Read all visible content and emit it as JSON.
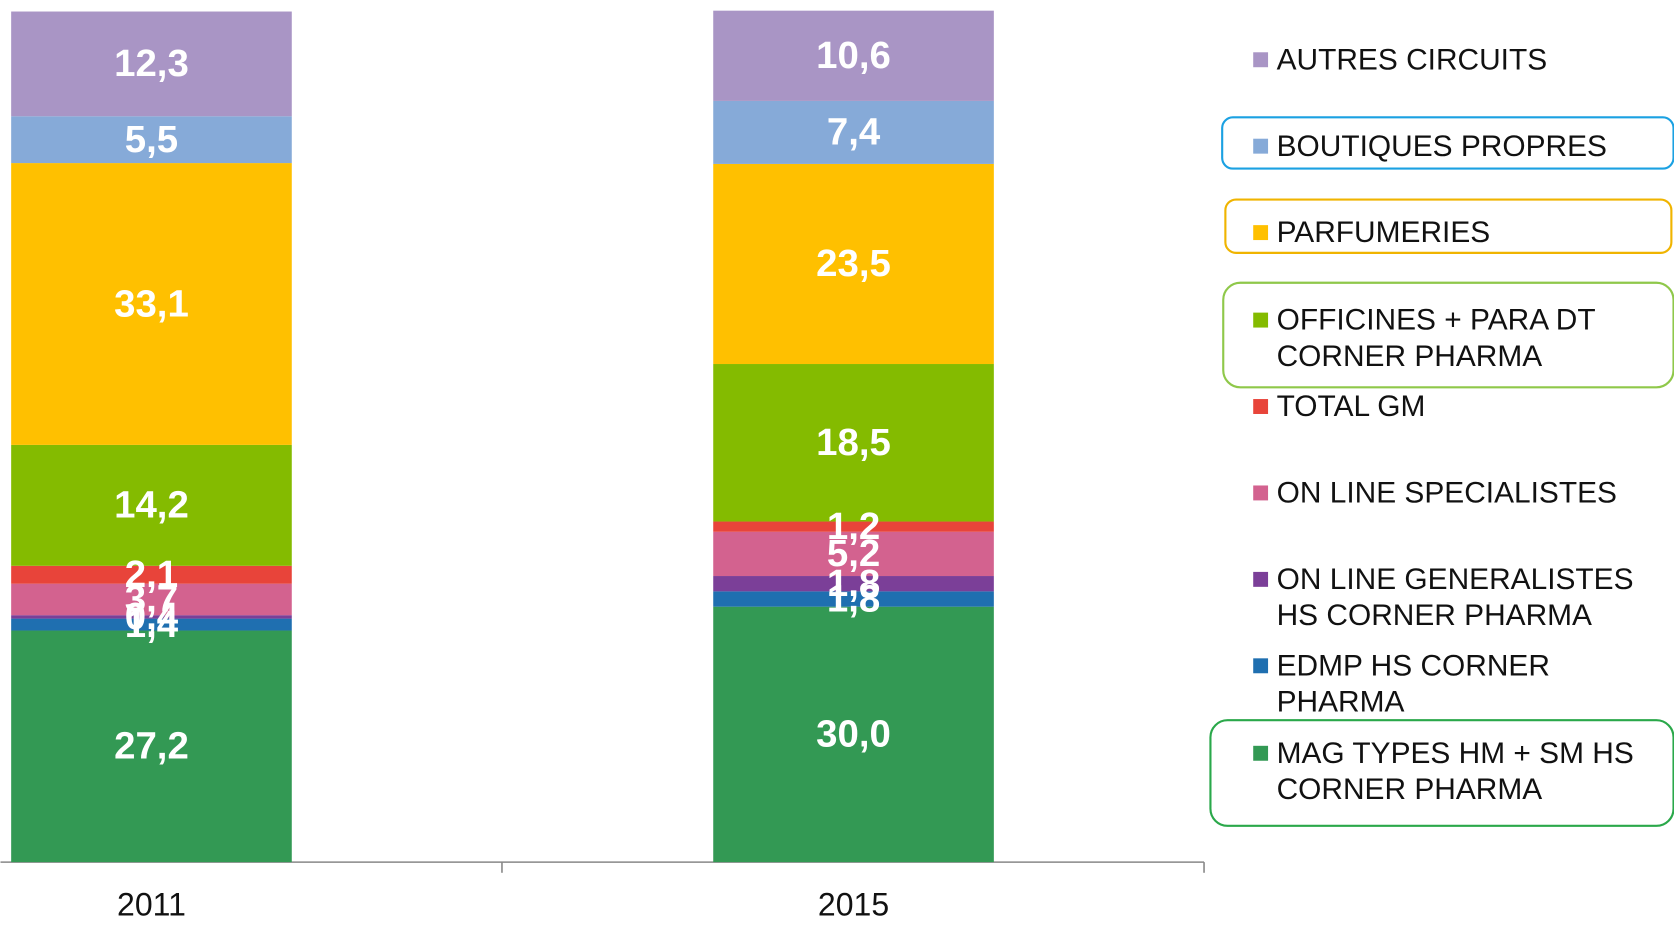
{
  "chart_data": {
    "type": "stacked_bar",
    "categories": [
      "2011",
      "2015"
    ],
    "ylim": [
      0,
      100
    ],
    "series": [
      {
        "name": "MAG TYPES HM + SM HS CORNER PHARMA",
        "color": "#339954",
        "values": [
          27.2,
          30.0
        ],
        "value_labels": [
          "27,2",
          "30,0"
        ]
      },
      {
        "name": "EDMP HS CORNER PHARMA",
        "color": "#1f6fb0",
        "values": [
          1.4,
          1.8
        ],
        "value_labels": [
          "1,4",
          "1,8"
        ]
      },
      {
        "name": "ON LINE GENERALISTES HS CORNER PHARMA",
        "color": "#7b3f98",
        "values": [
          0.4,
          1.8
        ],
        "value_labels": [
          "0,4",
          "1,8"
        ]
      },
      {
        "name": "ON LINE SPECIALISTES",
        "color": "#d3628f",
        "values": [
          3.7,
          5.2
        ],
        "value_labels": [
          "3,7",
          "5,2"
        ]
      },
      {
        "name": "TOTAL GM",
        "color": "#e8443a",
        "values": [
          2.1,
          1.2
        ],
        "value_labels": [
          "2,1",
          "1,2"
        ]
      },
      {
        "name": "OFFICINES + PARA DT CORNER PHARMA",
        "color": "#84bb00",
        "values": [
          14.2,
          18.5
        ],
        "value_labels": [
          "14,2",
          "18,5"
        ]
      },
      {
        "name": "PARFUMERIES",
        "color": "#ffc000",
        "values": [
          33.1,
          23.5
        ],
        "value_labels": [
          "33,1",
          "23,5"
        ]
      },
      {
        "name": "BOUTIQUES PROPRES",
        "color": "#86aad8",
        "values": [
          5.5,
          7.4
        ],
        "value_labels": [
          "5,5",
          "7,4"
        ]
      },
      {
        "name": "AUTRES CIRCUITS",
        "color": "#a995c5",
        "values": [
          12.3,
          10.6
        ],
        "value_labels": [
          "12,3",
          "10,6"
        ]
      }
    ]
  }
}
